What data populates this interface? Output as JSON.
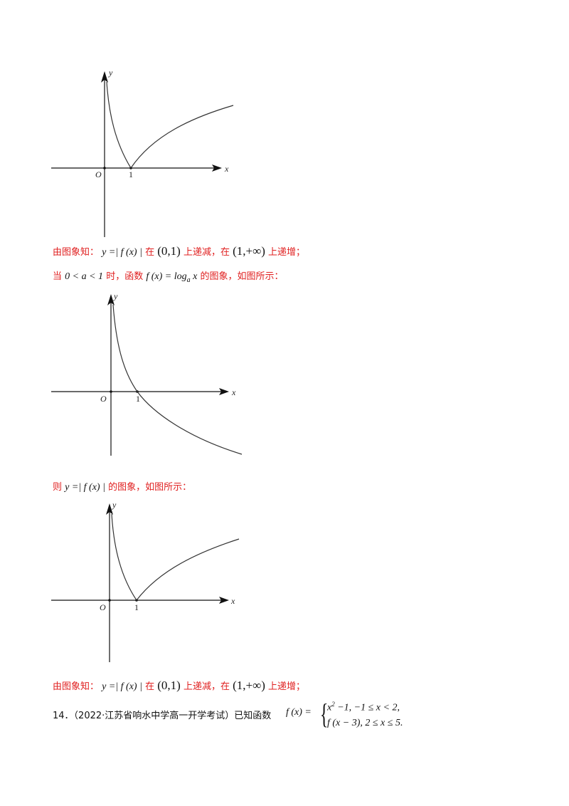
{
  "graphs": [
    {
      "id": "graph-1",
      "y_axis_label": "y",
      "x_axis_label": "x",
      "origin_label": "O",
      "tick_label": "1",
      "shape": "abs-log"
    },
    {
      "id": "graph-2",
      "y_axis_label": "y",
      "x_axis_label": "x",
      "origin_label": "O",
      "tick_label": "1",
      "shape": "log-decreasing"
    },
    {
      "id": "graph-3",
      "y_axis_label": "y",
      "x_axis_label": "x",
      "origin_label": "O",
      "tick_label": "1",
      "shape": "abs-log"
    }
  ],
  "text": {
    "line1": {
      "prefix": "由图象知：",
      "expr": "y =| f (x) |",
      "in1": "在",
      "interval1": "(0,1)",
      "dec": "上递减，在",
      "interval2": "(1,+∞)",
      "inc": "上递增；"
    },
    "line2": {
      "when": "当",
      "cond": "0 < a < 1",
      "time": "时，函数",
      "func": "f (x) = log",
      "sub": "a",
      "var": " x",
      "tail": "的图象，如图所示："
    },
    "line3": {
      "then": "则",
      "expr": "y =| f (x) |",
      "tail": "的图象，如图所示："
    },
    "line4": {
      "prefix": "由图象知：",
      "expr": "y =| f (x) |",
      "in1": "在",
      "interval1": "(0,1)",
      "dec": "上递减，在",
      "interval2": "(1,+∞)",
      "inc": "上递增；"
    },
    "problem": {
      "prefix": "14．（2022·江苏省响水中学高一开学考试）已知函数",
      "fx": "f (x) =",
      "case1_a": "x",
      "case1_sup": "2",
      "case1_b": " −1, −1 ≤ x < 2,",
      "case2": "f (x − 3), 2 ≤ x ≤ 5."
    }
  }
}
